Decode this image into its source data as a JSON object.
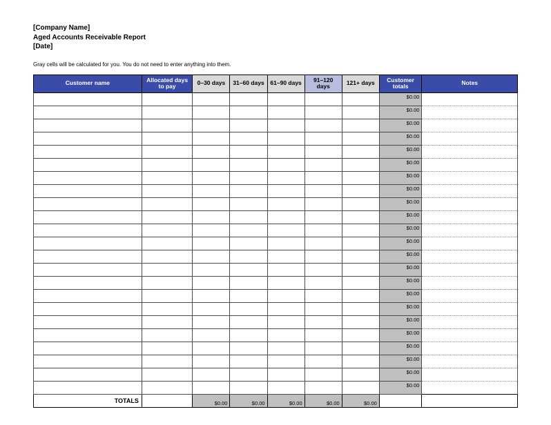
{
  "header": {
    "company": "[Company Name]",
    "title": "Aged Accounts Receivable Report",
    "date": "[Date]"
  },
  "note": "Gray cells will be calculated for you. You do not need to enter anything into them.",
  "columns": {
    "customer_name": "Customer name",
    "allocated": "Allocated days to pay",
    "d0_30": "0–30 days",
    "d31_60": "31–60 days",
    "d61_90": "61–90 days",
    "d91_120": "91–120 days",
    "d121": "121+ days",
    "customer_totals": "Customer totals",
    "notes": "Notes"
  },
  "header_colors": {
    "blue_bg": "#3b4ba8",
    "blue_fg": "#ffffff",
    "gray_bg": "#d9d9d9",
    "blue2_bg": "#b8bde0",
    "calc_bg": "#bfbfbf"
  },
  "row_count": 23,
  "row_total_value": "$0.00",
  "totals": {
    "label": "TOTALS",
    "d0_30": "$0.00",
    "d31_60": "$0.00",
    "d61_90": "$0.00",
    "d91_120": "$0.00",
    "d121": "$0.00"
  }
}
